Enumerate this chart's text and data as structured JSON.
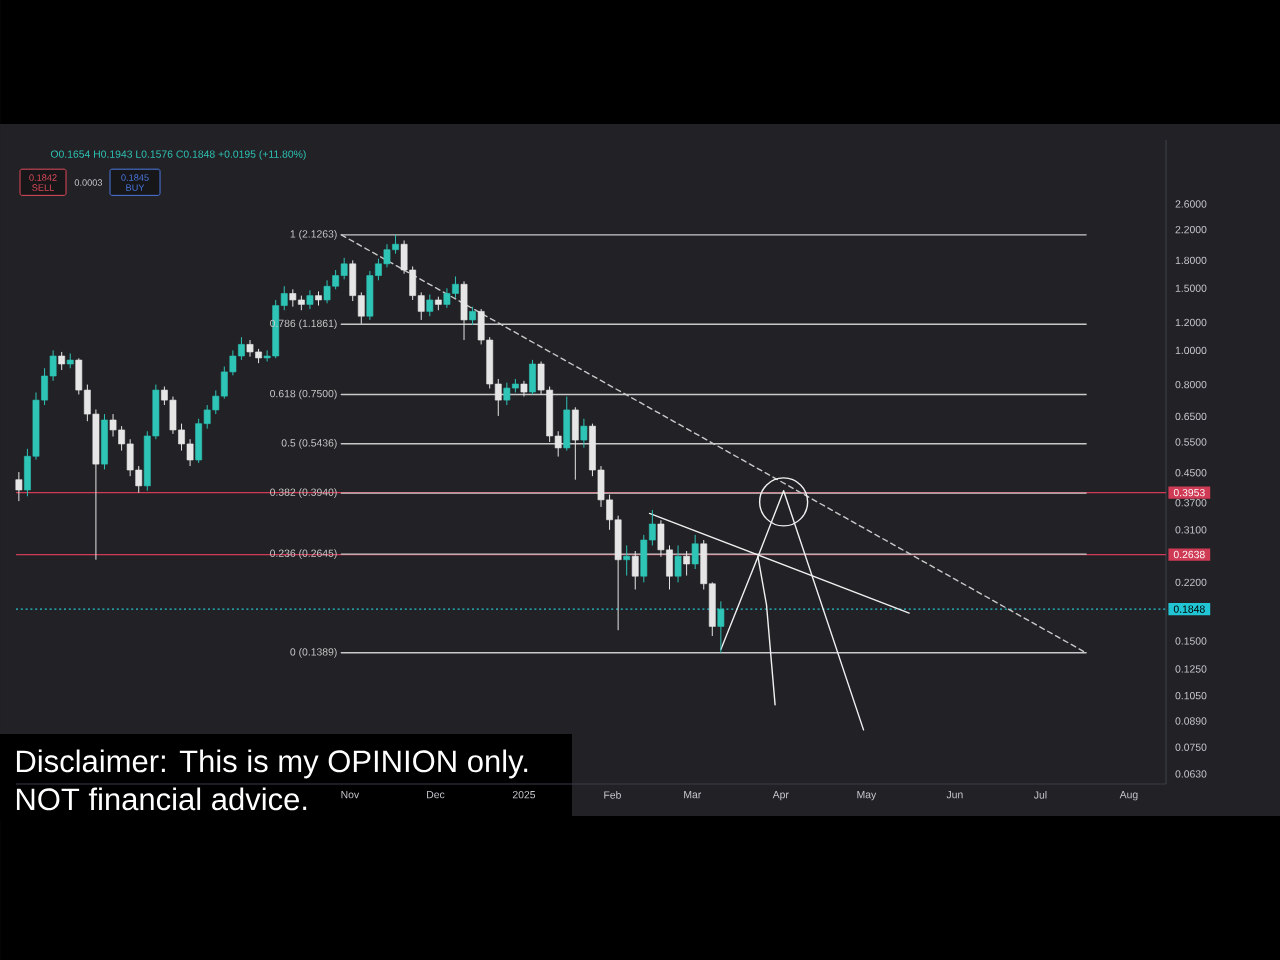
{
  "chart_data": {
    "type": "candlestick",
    "annotations": [
      "O0.1654 H0.1943 L0.1576 C0.1848 +0.0195 (+11.80%)",
      "0.1842",
      "SELL",
      "0.0003",
      "0.1845",
      "BUY",
      "Disclaimer: This is my OPINION only.",
      "NOT financial advice."
    ],
    "x": [
      "2024-07-08",
      "2024-07-11",
      "2024-07-14",
      "2024-07-17",
      "2024-07-20",
      "2024-07-23",
      "2024-07-26",
      "2024-07-29",
      "2024-08-01",
      "2024-08-04",
      "2024-08-07",
      "2024-08-10",
      "2024-08-13",
      "2024-08-16",
      "2024-08-19",
      "2024-08-22",
      "2024-08-25",
      "2024-08-28",
      "2024-08-31",
      "2024-09-03",
      "2024-09-06",
      "2024-09-09",
      "2024-09-12",
      "2024-09-15",
      "2024-09-18",
      "2024-09-21",
      "2024-09-24",
      "2024-09-27",
      "2024-09-30",
      "2024-10-03",
      "2024-10-06",
      "2024-10-09",
      "2024-10-12",
      "2024-10-15",
      "2024-10-18",
      "2024-10-21",
      "2024-10-24",
      "2024-10-27",
      "2024-10-30",
      "2024-11-02",
      "2024-11-05",
      "2024-11-08",
      "2024-11-11",
      "2024-11-14",
      "2024-11-17",
      "2024-11-20",
      "2024-11-23",
      "2024-11-26",
      "2024-11-29",
      "2024-12-02",
      "2024-12-05",
      "2024-12-08",
      "2024-12-11",
      "2024-12-14",
      "2024-12-17",
      "2024-12-20",
      "2024-12-23",
      "2024-12-26",
      "2024-12-29",
      "2025-01-01",
      "2025-01-04",
      "2025-01-07",
      "2025-01-10",
      "2025-01-13",
      "2025-01-16",
      "2025-01-19",
      "2025-01-22",
      "2025-01-25",
      "2025-01-28",
      "2025-01-31",
      "2025-02-03",
      "2025-02-06",
      "2025-02-09",
      "2025-02-12",
      "2025-02-15",
      "2025-02-18",
      "2025-02-21",
      "2025-02-24",
      "2025-02-27",
      "2025-03-02",
      "2025-03-05",
      "2025-03-08",
      "2025-03-11"
    ],
    "ohlc": [
      [
        0.43,
        0.452,
        0.374,
        0.402
      ],
      [
        0.402,
        0.526,
        0.386,
        0.501
      ],
      [
        0.501,
        0.76,
        0.49,
        0.723
      ],
      [
        0.723,
        0.89,
        0.7,
        0.846
      ],
      [
        0.846,
        1.0,
        0.82,
        0.964
      ],
      [
        0.964,
        0.99,
        0.88,
        0.915
      ],
      [
        0.915,
        0.98,
        0.89,
        0.939
      ],
      [
        0.939,
        0.95,
        0.75,
        0.772
      ],
      [
        0.772,
        0.8,
        0.63,
        0.66
      ],
      [
        0.66,
        0.68,
        0.255,
        0.476
      ],
      [
        0.476,
        0.66,
        0.46,
        0.635
      ],
      [
        0.635,
        0.66,
        0.57,
        0.595
      ],
      [
        0.595,
        0.61,
        0.52,
        0.543
      ],
      [
        0.543,
        0.56,
        0.44,
        0.458
      ],
      [
        0.458,
        0.47,
        0.395,
        0.413
      ],
      [
        0.413,
        0.59,
        0.4,
        0.572
      ],
      [
        0.572,
        0.8,
        0.56,
        0.772
      ],
      [
        0.772,
        0.79,
        0.7,
        0.723
      ],
      [
        0.723,
        0.74,
        0.58,
        0.595
      ],
      [
        0.595,
        0.62,
        0.52,
        0.543
      ],
      [
        0.543,
        0.56,
        0.47,
        0.489
      ],
      [
        0.489,
        0.64,
        0.48,
        0.62
      ],
      [
        0.62,
        0.7,
        0.6,
        0.678
      ],
      [
        0.678,
        0.77,
        0.66,
        0.742
      ],
      [
        0.742,
        0.9,
        0.73,
        0.869
      ],
      [
        0.869,
        1.0,
        0.85,
        0.964
      ],
      [
        0.964,
        1.09,
        0.94,
        1.04
      ],
      [
        1.04,
        1.07,
        0.96,
        0.99
      ],
      [
        0.99,
        1.01,
        0.92,
        0.952
      ],
      [
        0.952,
        1.0,
        0.93,
        0.964
      ],
      [
        0.964,
        1.39,
        0.95,
        1.34
      ],
      [
        1.34,
        1.52,
        1.3,
        1.45
      ],
      [
        1.45,
        1.49,
        1.33,
        1.39
      ],
      [
        1.39,
        1.43,
        1.3,
        1.35
      ],
      [
        1.35,
        1.48,
        1.31,
        1.43
      ],
      [
        1.43,
        1.47,
        1.34,
        1.39
      ],
      [
        1.39,
        1.58,
        1.36,
        1.52
      ],
      [
        1.52,
        1.69,
        1.49,
        1.63
      ],
      [
        1.63,
        1.83,
        1.59,
        1.76
      ],
      [
        1.76,
        1.8,
        1.38,
        1.43
      ],
      [
        1.43,
        1.46,
        1.19,
        1.25
      ],
      [
        1.25,
        1.68,
        1.22,
        1.63
      ],
      [
        1.63,
        1.82,
        1.58,
        1.76
      ],
      [
        1.76,
        2.0,
        1.72,
        1.93
      ],
      [
        1.93,
        2.1263,
        1.88,
        2.0
      ],
      [
        2.0,
        2.05,
        1.65,
        1.69
      ],
      [
        1.69,
        1.73,
        1.39,
        1.43
      ],
      [
        1.43,
        1.46,
        1.22,
        1.29
      ],
      [
        1.29,
        1.44,
        1.25,
        1.39
      ],
      [
        1.39,
        1.42,
        1.3,
        1.35
      ],
      [
        1.35,
        1.5,
        1.32,
        1.45
      ],
      [
        1.45,
        1.62,
        1.41,
        1.54
      ],
      [
        1.54,
        1.57,
        1.07,
        1.22
      ],
      [
        1.22,
        1.33,
        1.18,
        1.29
      ],
      [
        1.29,
        1.31,
        1.04,
        1.07
      ],
      [
        1.07,
        1.09,
        0.78,
        0.803
      ],
      [
        0.803,
        0.83,
        0.652,
        0.723
      ],
      [
        0.723,
        0.81,
        0.7,
        0.782
      ],
      [
        0.782,
        0.83,
        0.76,
        0.803
      ],
      [
        0.803,
        0.82,
        0.74,
        0.762
      ],
      [
        0.762,
        0.94,
        0.75,
        0.915
      ],
      [
        0.915,
        0.93,
        0.75,
        0.772
      ],
      [
        0.772,
        0.79,
        0.55,
        0.572
      ],
      [
        0.572,
        0.59,
        0.5,
        0.529
      ],
      [
        0.529,
        0.74,
        0.52,
        0.678
      ],
      [
        0.678,
        0.69,
        0.43,
        0.557
      ],
      [
        0.557,
        0.64,
        0.53,
        0.61
      ],
      [
        0.61,
        0.62,
        0.44,
        0.458
      ],
      [
        0.458,
        0.47,
        0.36,
        0.377
      ],
      [
        0.377,
        0.39,
        0.31,
        0.331
      ],
      [
        0.331,
        0.34,
        0.161,
        0.255
      ],
      [
        0.255,
        0.28,
        0.23,
        0.261
      ],
      [
        0.261,
        0.27,
        0.21,
        0.229
      ],
      [
        0.229,
        0.3,
        0.22,
        0.29
      ],
      [
        0.29,
        0.353,
        0.28,
        0.322
      ],
      [
        0.322,
        0.33,
        0.26,
        0.272
      ],
      [
        0.272,
        0.28,
        0.21,
        0.229
      ],
      [
        0.229,
        0.28,
        0.22,
        0.261
      ],
      [
        0.261,
        0.27,
        0.23,
        0.248
      ],
      [
        0.248,
        0.3,
        0.24,
        0.283
      ],
      [
        0.283,
        0.29,
        0.21,
        0.218
      ],
      [
        0.218,
        0.22,
        0.155,
        0.165
      ],
      [
        0.165,
        0.1943,
        0.1389,
        0.1848
      ]
    ],
    "colors": [
      "#e6e6e6",
      "#2ec4b6",
      "#2ec4b6",
      "#2ec4b6",
      "#2ec4b6",
      "#e6e6e6",
      "#2ec4b6",
      "#e6e6e6",
      "#e6e6e6",
      "#e6e6e6",
      "#2ec4b6",
      "#e6e6e6",
      "#e6e6e6",
      "#e6e6e6",
      "#e6e6e6",
      "#2ec4b6",
      "#2ec4b6",
      "#e6e6e6",
      "#e6e6e6",
      "#e6e6e6",
      "#e6e6e6",
      "#2ec4b6",
      "#2ec4b6",
      "#2ec4b6",
      "#2ec4b6",
      "#2ec4b6",
      "#2ec4b6",
      "#e6e6e6",
      "#e6e6e6",
      "#2ec4b6",
      "#2ec4b6",
      "#2ec4b6",
      "#e6e6e6",
      "#e6e6e6",
      "#2ec4b6",
      "#e6e6e6",
      "#2ec4b6",
      "#2ec4b6",
      "#2ec4b6",
      "#e6e6e6",
      "#e6e6e6",
      "#2ec4b6",
      "#2ec4b6",
      "#2ec4b6",
      "#2ec4b6",
      "#e6e6e6",
      "#e6e6e6",
      "#e6e6e6",
      "#2ec4b6",
      "#e6e6e6",
      "#2ec4b6",
      "#2ec4b6",
      "#e6e6e6",
      "#2ec4b6",
      "#e6e6e6",
      "#e6e6e6",
      "#e6e6e6",
      "#2ec4b6",
      "#2ec4b6",
      "#e6e6e6",
      "#2ec4b6",
      "#e6e6e6",
      "#e6e6e6",
      "#e6e6e6",
      "#2ec4b6",
      "#e6e6e6",
      "#2ec4b6",
      "#e6e6e6",
      "#e6e6e6",
      "#e6e6e6",
      "#e6e6e6",
      "#2ec4b6",
      "#e6e6e6",
      "#2ec4b6",
      "#2ec4b6",
      "#e6e6e6",
      "#e6e6e6",
      "#2ec4b6",
      "#e6e6e6",
      "#2ec4b6",
      "#e6e6e6",
      "#e6e6e6",
      "#2ec4b6"
    ],
    "series": [
      {
        "type": "line",
        "name": "1 (2.1263)",
        "color": "#c9c9c9",
        "x": [
          "2024-10-29",
          "2025-07-17"
        ],
        "values": [
          2.1263,
          2.1263
        ]
      },
      {
        "type": "line",
        "name": "0.786 (1.1861)",
        "color": "#c9c9c9",
        "x": [
          "2024-10-29",
          "2025-07-17"
        ],
        "values": [
          1.1861,
          1.1861
        ]
      },
      {
        "type": "line",
        "name": "0.618 (0.7500)",
        "color": "#c9c9c9",
        "x": [
          "2024-10-29",
          "2025-07-17"
        ],
        "values": [
          0.75,
          0.75
        ]
      },
      {
        "type": "line",
        "name": "0.5 (0.5436)",
        "color": "#c9c9c9",
        "x": [
          "2024-10-29",
          "2025-07-17"
        ],
        "values": [
          0.5436,
          0.5436
        ]
      },
      {
        "type": "line",
        "name": "0.382 (0.3940)",
        "color": "#c9c9c9",
        "x": [
          "2024-10-29",
          "2025-07-17"
        ],
        "values": [
          0.394,
          0.394
        ]
      },
      {
        "type": "line",
        "name": "0.236 (0.2645)",
        "color": "#c9c9c9",
        "x": [
          "2024-10-29",
          "2025-07-17"
        ],
        "values": [
          0.2645,
          0.2645
        ]
      },
      {
        "type": "line",
        "name": "0 (0.1389)",
        "color": "#c9c9c9",
        "x": [
          "2024-10-29",
          "2025-07-17"
        ],
        "values": [
          0.1389,
          0.1389
        ]
      },
      {
        "type": "line",
        "color": "#c9c9c9",
        "line_style": "dashed",
        "x": [
          "2024-10-29",
          "2025-07-17"
        ],
        "values": [
          2.1263,
          0.1389
        ]
      },
      {
        "type": "line",
        "color": "#f0f0f0",
        "x": [
          "2025-02-14",
          "2025-05-16"
        ],
        "values": [
          0.345,
          0.18
        ]
      },
      {
        "type": "line",
        "color": "#f0f0f0",
        "x": [
          "2025-03-11",
          "2025-03-24",
          "2025-04-02",
          "2025-04-30"
        ],
        "values": [
          0.142,
          0.26,
          0.4,
          0.084
        ]
      },
      {
        "type": "line",
        "color": "#f0f0f0",
        "x": [
          "2025-03-24",
          "2025-03-27",
          "2025-03-30"
        ],
        "values": [
          0.26,
          0.19,
          0.099
        ]
      },
      {
        "type": "scatter",
        "color": "#f0f0f0",
        "marker": "circle",
        "x": [
          "2025-04-02"
        ],
        "values": [
          0.372
        ]
      }
    ],
    "ref_lines": [
      {
        "axis": "y",
        "value": 0.3953,
        "label": "0.3953",
        "color": "#cf3a55"
      },
      {
        "axis": "y",
        "value": 0.2638,
        "label": "0.2638",
        "color": "#cf3a55"
      },
      {
        "axis": "y",
        "value": 0.1848,
        "label": "0.1848",
        "color": "#22c5d3",
        "line_style": "dotted"
      }
    ],
    "xlim": [
      "2024-07-07",
      "2025-08-14"
    ],
    "ylim": [
      0.059,
      3.95
    ],
    "xticks": [
      {
        "value": "2024-11-01",
        "label": "Nov"
      },
      {
        "value": "2024-12-01",
        "label": "Dec"
      },
      {
        "value": "2025-01-01",
        "label": "2025"
      },
      {
        "value": "2025-02-01",
        "label": "Feb"
      },
      {
        "value": "2025-03-01",
        "label": "Mar"
      },
      {
        "value": "2025-04-01",
        "label": "Apr"
      },
      {
        "value": "2025-05-01",
        "label": "May"
      },
      {
        "value": "2025-06-01",
        "label": "Jun"
      },
      {
        "value": "2025-07-01",
        "label": "Jul"
      },
      {
        "value": "2025-08-01",
        "label": "Aug"
      }
    ],
    "yticks": [
      {
        "value": 2.6,
        "label": "2.6000"
      },
      {
        "value": 2.2,
        "label": "2.2000"
      },
      {
        "value": 1.8,
        "label": "1.8000"
      },
      {
        "value": 1.5,
        "label": "1.5000"
      },
      {
        "value": 1.2,
        "label": "1.2000"
      },
      {
        "value": 1.0,
        "label": "1.0000"
      },
      {
        "value": 0.8,
        "label": "0.8000"
      },
      {
        "value": 0.65,
        "label": "0.6500"
      },
      {
        "value": 0.55,
        "label": "0.5500"
      },
      {
        "value": 0.45,
        "label": "0.4500"
      },
      {
        "value": 0.37,
        "label": "0.3700"
      },
      {
        "value": 0.31,
        "label": "0.3100"
      },
      {
        "value": 0.22,
        "label": "0.2200"
      },
      {
        "value": 0.15,
        "label": "0.1500"
      },
      {
        "value": 0.125,
        "label": "0.1250"
      },
      {
        "value": 0.105,
        "label": "0.1050"
      },
      {
        "value": 0.089,
        "label": "0.0890"
      },
      {
        "value": 0.075,
        "label": "0.0750"
      },
      {
        "value": 0.063,
        "label": "0.0630"
      }
    ],
    "log": "y"
  }
}
